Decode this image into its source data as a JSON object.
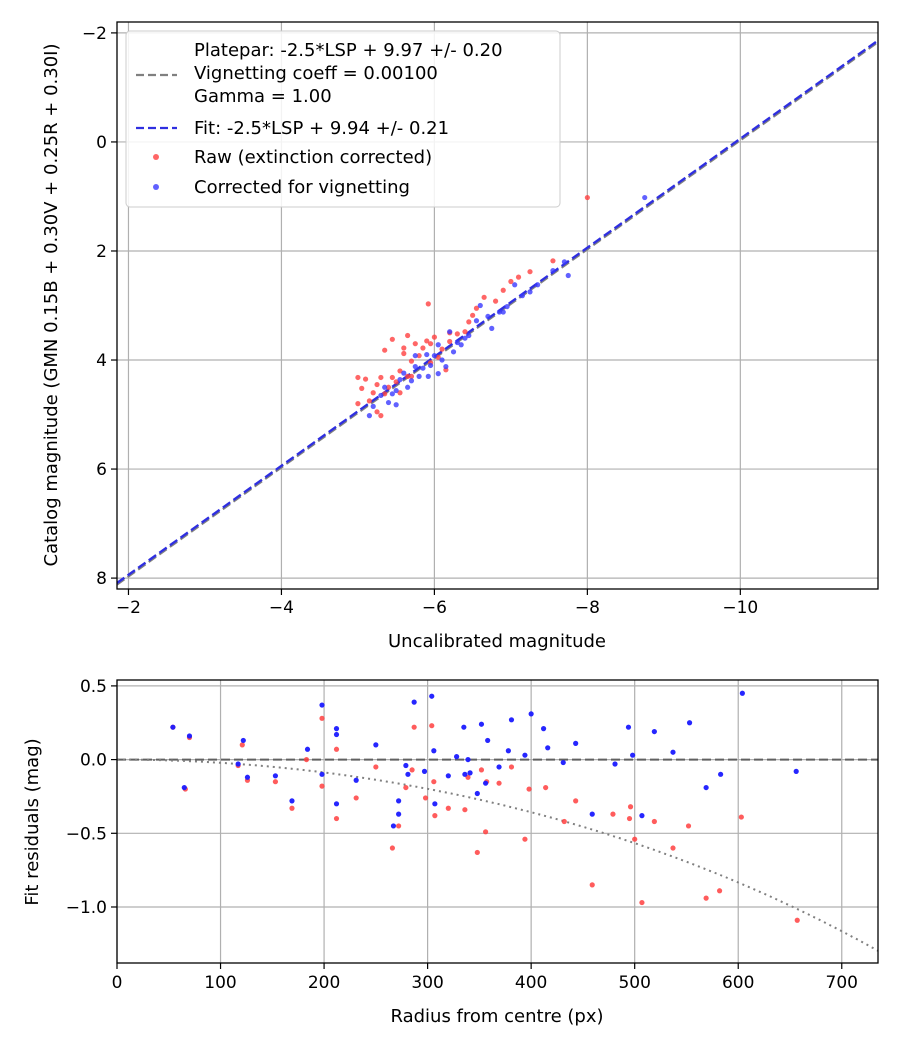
{
  "chart_data": [
    {
      "type": "scatter",
      "id": "top",
      "xlabel": "Uncalibrated magnitude",
      "ylabel": "Catalog magnitude (GMN 0.15B + 0.30V + 0.25R + 0.30I)",
      "xlim": [
        -1.85,
        -11.8
      ],
      "ylim": [
        8.2,
        -2.2
      ],
      "xticks": [
        -2,
        -4,
        -6,
        -8,
        -10
      ],
      "yticks": [
        -2,
        0,
        2,
        4,
        6,
        8
      ],
      "grid": true,
      "legend_position": "top-left",
      "lines": [
        {
          "name": "Platepar: -2.5*LSP + 9.97 +/- 0.20\nVignetting coeff = 0.00100\nGamma = 1.00",
          "slope": 1.0,
          "intercept": 9.97,
          "color": "#808080",
          "style": "dashed"
        },
        {
          "name": "Fit: -2.5*LSP + 9.94 +/- 0.21",
          "slope": 1.0,
          "intercept": 9.94,
          "color": "#2f2fe0",
          "style": "dashed"
        }
      ],
      "series": [
        {
          "name": "Raw (extinction corrected)",
          "color": "#ff4040",
          "points": [
            [
              -8.0,
              1.02
            ],
            [
              -7.55,
              2.18
            ],
            [
              -7.25,
              2.38
            ],
            [
              -7.1,
              2.48
            ],
            [
              -7.0,
              2.56
            ],
            [
              -6.9,
              2.72
            ],
            [
              -6.8,
              2.92
            ],
            [
              -6.65,
              2.85
            ],
            [
              -6.55,
              3.05
            ],
            [
              -6.5,
              3.18
            ],
            [
              -6.45,
              3.3
            ],
            [
              -6.4,
              3.48
            ],
            [
              -6.3,
              3.52
            ],
            [
              -6.2,
              3.66
            ],
            [
              -6.1,
              3.8
            ],
            [
              -6.0,
              3.58
            ],
            [
              -5.95,
              3.7
            ],
            [
              -5.92,
              2.97
            ],
            [
              -5.85,
              3.78
            ],
            [
              -5.8,
              3.92
            ],
            [
              -5.75,
              3.7
            ],
            [
              -5.7,
              4.02
            ],
            [
              -5.65,
              4.3
            ],
            [
              -5.6,
              3.88
            ],
            [
              -5.55,
              4.2
            ],
            [
              -5.5,
              4.4
            ],
            [
              -5.45,
              4.32
            ],
            [
              -5.4,
              4.5
            ],
            [
              -5.35,
              4.62
            ],
            [
              -5.3,
              4.32
            ],
            [
              -5.25,
              4.45
            ],
            [
              -5.2,
              4.6
            ],
            [
              -5.15,
              4.75
            ],
            [
              -5.1,
              4.35
            ],
            [
              -5.05,
              4.52
            ],
            [
              -5.0,
              4.8
            ],
            [
              -5.45,
              3.62
            ],
            [
              -5.6,
              3.78
            ],
            [
              -5.7,
              4.3
            ],
            [
              -5.3,
              5.02
            ],
            [
              -5.0,
              4.32
            ],
            [
              -5.35,
              3.82
            ],
            [
              -6.05,
              3.95
            ],
            [
              -6.2,
              3.5
            ],
            [
              -5.95,
              4.05
            ],
            [
              -6.15,
              4.18
            ],
            [
              -5.55,
              4.6
            ],
            [
              -5.25,
              4.95
            ],
            [
              -5.9,
              3.65
            ],
            [
              -5.65,
              3.55
            ]
          ]
        },
        {
          "name": "Corrected for vignetting",
          "color": "#3a3aff",
          "points": [
            [
              -8.75,
              1.02
            ],
            [
              -7.75,
              2.45
            ],
            [
              -7.7,
              2.2
            ],
            [
              -7.55,
              2.36
            ],
            [
              -7.35,
              2.62
            ],
            [
              -7.15,
              2.82
            ],
            [
              -7.05,
              2.62
            ],
            [
              -6.95,
              3.02
            ],
            [
              -6.85,
              3.12
            ],
            [
              -6.7,
              3.2
            ],
            [
              -6.6,
              3.0
            ],
            [
              -6.55,
              3.28
            ],
            [
              -6.45,
              3.55
            ],
            [
              -6.35,
              3.72
            ],
            [
              -6.25,
              3.85
            ],
            [
              -6.2,
              3.48
            ],
            [
              -6.1,
              4.0
            ],
            [
              -6.05,
              4.25
            ],
            [
              -6.0,
              3.92
            ],
            [
              -5.95,
              4.1
            ],
            [
              -5.9,
              3.9
            ],
            [
              -5.85,
              4.15
            ],
            [
              -5.8,
              4.3
            ],
            [
              -5.75,
              4.12
            ],
            [
              -5.7,
              4.38
            ],
            [
              -5.65,
              4.5
            ],
            [
              -5.6,
              4.24
            ],
            [
              -5.55,
              4.36
            ],
            [
              -5.5,
              4.56
            ],
            [
              -5.45,
              4.62
            ],
            [
              -5.4,
              4.78
            ],
            [
              -5.35,
              4.5
            ],
            [
              -5.3,
              4.65
            ],
            [
              -5.2,
              4.85
            ],
            [
              -5.15,
              5.02
            ],
            [
              -6.3,
              3.68
            ],
            [
              -6.4,
              3.6
            ],
            [
              -6.9,
              3.12
            ],
            [
              -7.25,
              2.75
            ],
            [
              -6.75,
              3.42
            ],
            [
              -5.75,
              3.92
            ],
            [
              -6.05,
              3.72
            ],
            [
              -5.5,
              4.82
            ],
            [
              -5.92,
              4.3
            ],
            [
              -6.15,
              4.12
            ]
          ]
        }
      ]
    },
    {
      "type": "scatter",
      "id": "bottom",
      "xlabel": "Radius from centre (px)",
      "ylabel": "Fit residuals (mag)",
      "xlim": [
        0,
        735
      ],
      "ylim": [
        -1.38,
        0.54
      ],
      "xticks": [
        0,
        100,
        200,
        300,
        400,
        500,
        600,
        700
      ],
      "yticks": [
        -1.0,
        -0.5,
        0.0,
        0.5
      ],
      "grid": true,
      "reference_line": {
        "y": 0.0,
        "color": "#606060",
        "style": "dashed"
      },
      "vignetting_curve": {
        "coeff": 0.001,
        "color": "#808080",
        "style": "dotted"
      },
      "series": [
        {
          "name": "Raw",
          "color": "#ff4040",
          "points": [
            [
              54,
              0.22
            ],
            [
              66,
              -0.2
            ],
            [
              70,
              0.15
            ],
            [
              117,
              -0.04
            ],
            [
              121,
              0.1
            ],
            [
              126,
              -0.14
            ],
            [
              153,
              -0.15
            ],
            [
              169,
              -0.33
            ],
            [
              183,
              0.0
            ],
            [
              198,
              0.28
            ],
            [
              198,
              -0.18
            ],
            [
              212,
              -0.4
            ],
            [
              212,
              0.07
            ],
            [
              231,
              -0.26
            ],
            [
              250,
              -0.05
            ],
            [
              266,
              -0.6
            ],
            [
              272,
              -0.45
            ],
            [
              279,
              -0.19
            ],
            [
              285,
              -0.07
            ],
            [
              287,
              0.22
            ],
            [
              298,
              -0.26
            ],
            [
              304,
              0.23
            ],
            [
              306,
              -0.15
            ],
            [
              307,
              -0.38
            ],
            [
              320,
              -0.33
            ],
            [
              336,
              -0.34
            ],
            [
              339,
              -0.12
            ],
            [
              348,
              -0.63
            ],
            [
              352,
              -0.07
            ],
            [
              356,
              -0.49
            ],
            [
              357,
              -0.15
            ],
            [
              369,
              -0.16
            ],
            [
              381,
              -0.05
            ],
            [
              394,
              -0.54
            ],
            [
              398,
              -0.2
            ],
            [
              414,
              -0.19
            ],
            [
              432,
              -0.42
            ],
            [
              443,
              -0.28
            ],
            [
              459,
              -0.85
            ],
            [
              479,
              -0.37
            ],
            [
              495,
              -0.4
            ],
            [
              496,
              -0.32
            ],
            [
              500,
              -0.54
            ],
            [
              507,
              -0.97
            ],
            [
              519,
              -0.42
            ],
            [
              537,
              -0.6
            ],
            [
              552,
              -0.45
            ],
            [
              569,
              -0.94
            ],
            [
              582,
              -0.89
            ],
            [
              603,
              -0.39
            ],
            [
              657,
              -1.09
            ]
          ]
        },
        {
          "name": "Corrected",
          "color": "#1a1aff",
          "points": [
            [
              54,
              0.22
            ],
            [
              65,
              -0.19
            ],
            [
              70,
              0.16
            ],
            [
              117,
              -0.03
            ],
            [
              122,
              0.13
            ],
            [
              126,
              -0.12
            ],
            [
              153,
              -0.11
            ],
            [
              169,
              -0.28
            ],
            [
              184,
              0.07
            ],
            [
              198,
              -0.1
            ],
            [
              198,
              0.37
            ],
            [
              212,
              -0.3
            ],
            [
              212,
              0.21
            ],
            [
              212,
              0.17
            ],
            [
              231,
              -0.14
            ],
            [
              250,
              0.1
            ],
            [
              267,
              -0.45
            ],
            [
              272,
              -0.37
            ],
            [
              272,
              -0.28
            ],
            [
              279,
              -0.04
            ],
            [
              281,
              -0.1
            ],
            [
              287,
              0.39
            ],
            [
              297,
              -0.08
            ],
            [
              304,
              0.43
            ],
            [
              306,
              0.06
            ],
            [
              307,
              -0.3
            ],
            [
              320,
              -0.11
            ],
            [
              328,
              0.02
            ],
            [
              335,
              0.22
            ],
            [
              336,
              -0.1
            ],
            [
              339,
              0.0
            ],
            [
              341,
              -0.09
            ],
            [
              348,
              -0.23
            ],
            [
              352,
              0.24
            ],
            [
              356,
              -0.16
            ],
            [
              358,
              0.13
            ],
            [
              369,
              -0.05
            ],
            [
              378,
              0.06
            ],
            [
              381,
              0.27
            ],
            [
              394,
              0.03
            ],
            [
              400,
              0.31
            ],
            [
              412,
              0.21
            ],
            [
              416,
              0.08
            ],
            [
              431,
              -0.02
            ],
            [
              443,
              0.11
            ],
            [
              459,
              -0.37
            ],
            [
              481,
              -0.03
            ],
            [
              494,
              0.22
            ],
            [
              498,
              0.03
            ],
            [
              507,
              -0.38
            ],
            [
              519,
              0.19
            ],
            [
              537,
              0.05
            ],
            [
              553,
              0.25
            ],
            [
              569,
              -0.19
            ],
            [
              583,
              -0.1
            ],
            [
              604,
              0.45
            ],
            [
              656,
              -0.08
            ]
          ]
        }
      ]
    }
  ]
}
